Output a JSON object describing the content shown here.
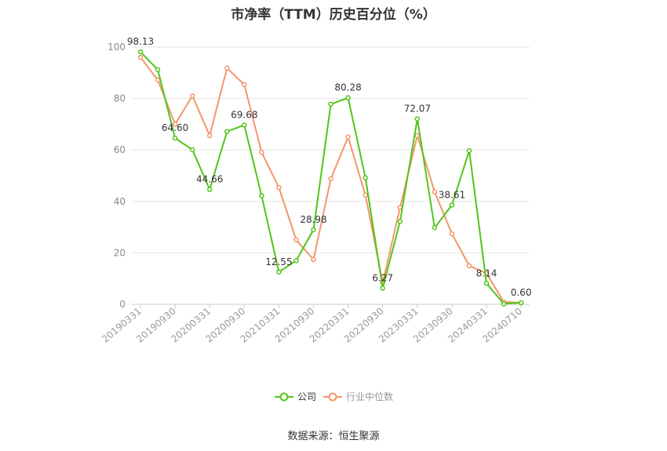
{
  "title": "市净率（TTM）历史百分位（%）",
  "source": "数据来源：恒生聚源",
  "colors": {
    "company": "#52c41a",
    "industry": "#f4956a",
    "grid": "#e6e6e6",
    "axis": "#cccccc"
  },
  "chart_data": {
    "type": "line",
    "title": "市净率（TTM）历史百分位（%）",
    "xlabel": "",
    "ylabel": "",
    "ylim": [
      0,
      100
    ],
    "yticks": [
      0,
      20,
      40,
      60,
      80,
      100
    ],
    "grid": true,
    "legend_position": "bottom",
    "x": [
      "20190331",
      "20190630",
      "20190930",
      "20191231",
      "20200331",
      "20200630",
      "20200930",
      "20201231",
      "20210331",
      "20210630",
      "20210930",
      "20211231",
      "20220331",
      "20220630",
      "20220930",
      "20221231",
      "20230331",
      "20230630",
      "20230930",
      "20231231",
      "20240331",
      "20240630",
      "20240710"
    ],
    "xtick_labels": [
      "20190331",
      "20190930",
      "20200331",
      "20200930",
      "20210331",
      "20210930",
      "20220331",
      "20220930",
      "20230331",
      "20230930",
      "20240331",
      "20240710"
    ],
    "series": [
      {
        "name": "公司",
        "values": [
          98.13,
          91.2,
          64.6,
          60.1,
          44.66,
          67.2,
          69.68,
          42.2,
          12.55,
          17.0,
          28.98,
          77.8,
          80.28,
          49.2,
          6.27,
          32.2,
          72.07,
          29.8,
          38.61,
          59.7,
          8.14,
          0.2,
          0.6
        ],
        "labels": {
          "0": "98.13",
          "2": "64.60",
          "4": "44.66",
          "6": "69.68",
          "8": "12.55",
          "10": "28.98",
          "12": "80.28",
          "14": "6.27",
          "16": "72.07",
          "18": "38.61",
          "20": "8.14",
          "22": "0.60"
        }
      },
      {
        "name": "行业中位数",
        "values": [
          96.0,
          87.2,
          70.0,
          81.0,
          65.6,
          91.8,
          85.4,
          59.1,
          45.4,
          25.0,
          17.4,
          48.8,
          65.0,
          42.4,
          8.4,
          37.6,
          65.6,
          43.7,
          27.4,
          15.0,
          12.0,
          0.9,
          0.6
        ]
      }
    ]
  }
}
